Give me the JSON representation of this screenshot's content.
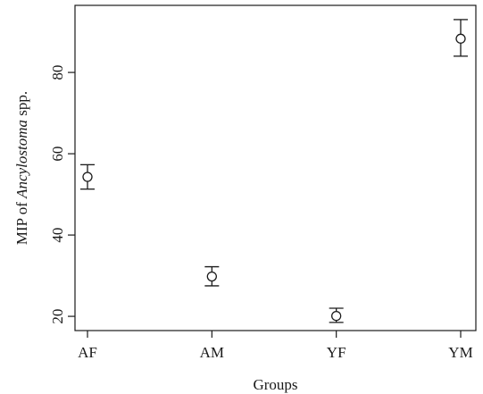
{
  "chart_data": {
    "type": "scatter",
    "categories": [
      "AF",
      "AM",
      "YF",
      "YM"
    ],
    "series": [
      {
        "values": [
          54.3,
          29.8,
          20.1,
          88.3
        ],
        "error_low": [
          51.3,
          27.5,
          18.5,
          84.0
        ],
        "error_high": [
          57.3,
          32.2,
          22.0,
          93.0
        ]
      }
    ],
    "xlabel": "Groups",
    "ylabel_parts": [
      "MIP of ",
      "Ancylostoma",
      " spp."
    ],
    "yticks": [
      20,
      40,
      60,
      80
    ],
    "ylim": [
      16.5,
      96.5
    ],
    "grid": false,
    "marker": "open-circle",
    "color": "#1a1a1a"
  }
}
